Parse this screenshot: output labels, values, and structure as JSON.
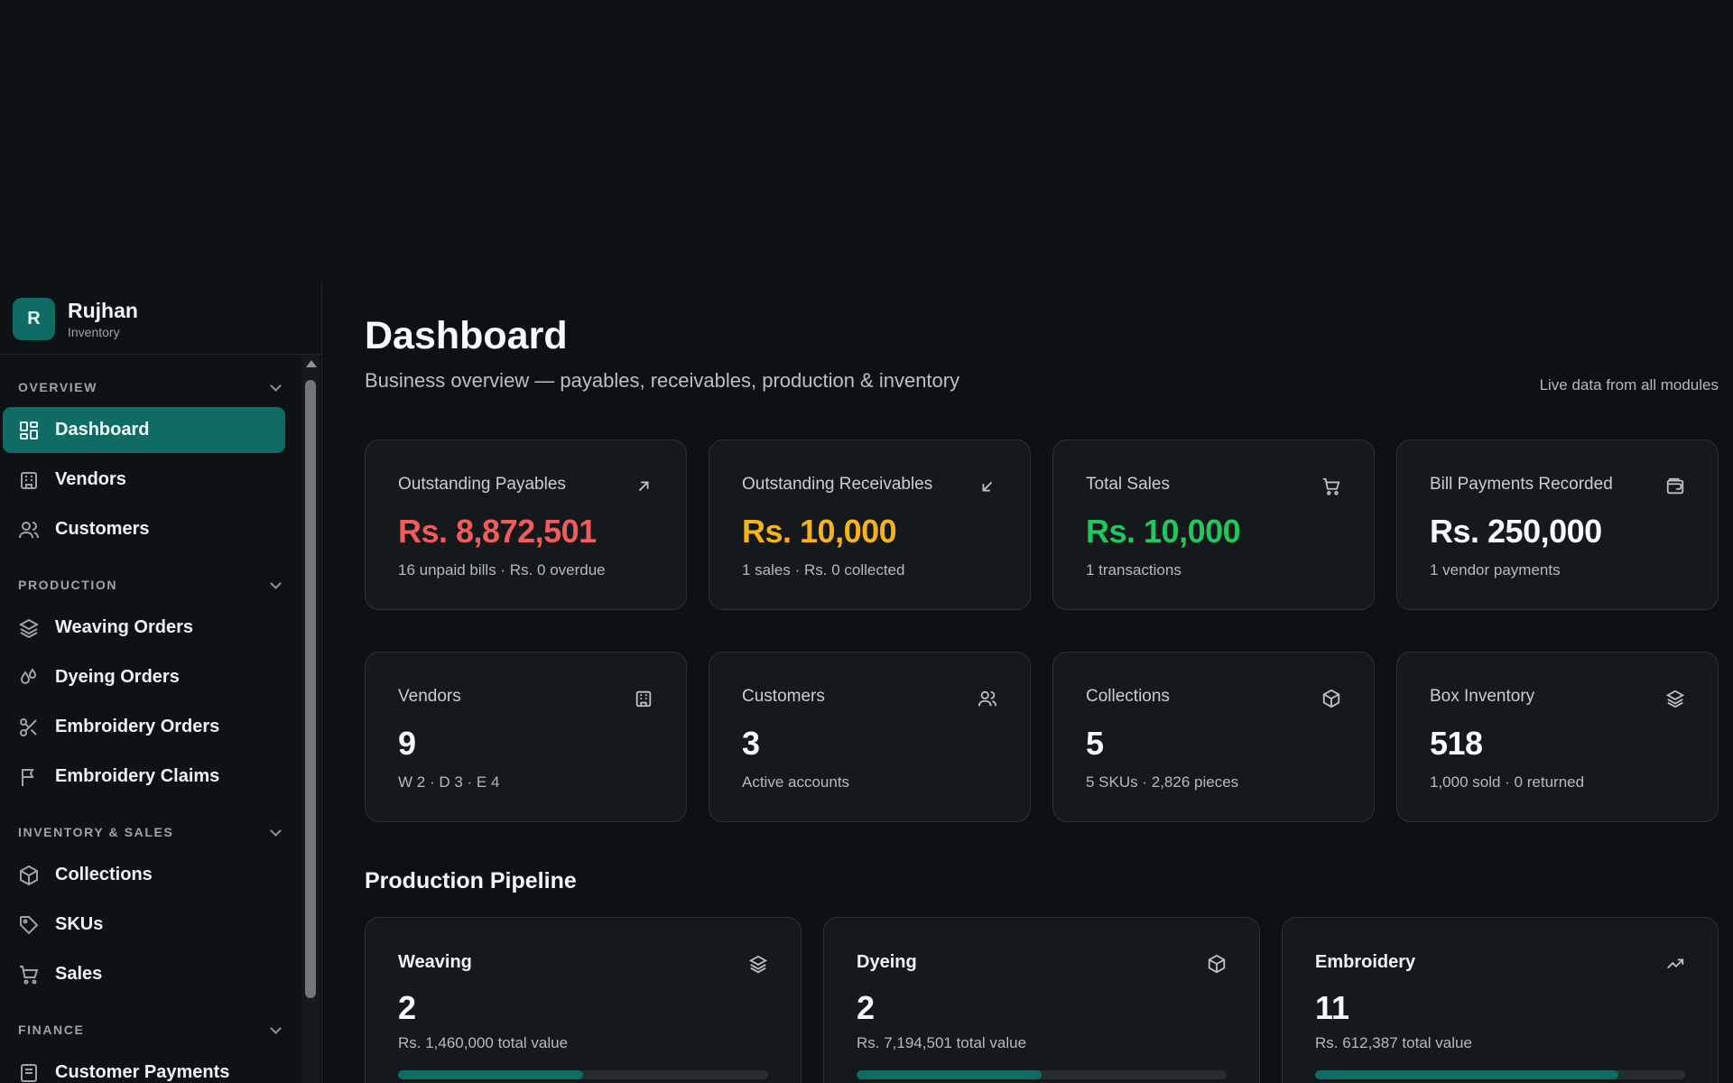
{
  "brand": {
    "logo_letter": "R",
    "name": "Rujhan",
    "subtitle": "Inventory"
  },
  "sidebar": {
    "sections": [
      {
        "title": "OVERVIEW",
        "items": [
          {
            "label": "Dashboard",
            "icon": "dashboard-grid-icon",
            "active": true
          },
          {
            "label": "Vendors",
            "icon": "building-icon"
          },
          {
            "label": "Customers",
            "icon": "users-icon"
          }
        ]
      },
      {
        "title": "PRODUCTION",
        "items": [
          {
            "label": "Weaving Orders",
            "icon": "layers-icon"
          },
          {
            "label": "Dyeing Orders",
            "icon": "droplets-icon"
          },
          {
            "label": "Embroidery Orders",
            "icon": "scissors-icon"
          },
          {
            "label": "Embroidery Claims",
            "icon": "flag-icon"
          }
        ]
      },
      {
        "title": "INVENTORY & SALES",
        "items": [
          {
            "label": "Collections",
            "icon": "package-icon"
          },
          {
            "label": "SKUs",
            "icon": "tag-icon"
          },
          {
            "label": "Sales",
            "icon": "cart-icon"
          }
        ]
      },
      {
        "title": "FINANCE",
        "items": [
          {
            "label": "Customer Payments",
            "icon": "receipt-icon"
          }
        ]
      }
    ]
  },
  "header": {
    "title": "Dashboard",
    "subtitle": "Business overview — payables, receivables, production & inventory",
    "live_note": "Live data from all modules"
  },
  "kpis_row1": [
    {
      "label": "Outstanding Payables",
      "value": "Rs. 8,872,501",
      "note": "16 unpaid bills · Rs. 0 overdue",
      "icon": "arrow-up-right-icon",
      "color": "#f25b5b"
    },
    {
      "label": "Outstanding Receivables",
      "value": "Rs. 10,000",
      "note": "1 sales · Rs. 0 collected",
      "icon": "arrow-down-left-icon",
      "color": "#f4b21b"
    },
    {
      "label": "Total Sales",
      "value": "Rs. 10,000",
      "note": "1 transactions",
      "icon": "cart-icon",
      "color": "#22c55e"
    },
    {
      "label": "Bill Payments Recorded",
      "value": "Rs. 250,000",
      "note": "1 vendor payments",
      "icon": "wallet-icon",
      "color": "#f7f9fa"
    }
  ],
  "kpis_row2": [
    {
      "label": "Vendors",
      "value": "9",
      "note": "W 2 · D 3 · E 4",
      "icon": "building-icon"
    },
    {
      "label": "Customers",
      "value": "3",
      "note": "Active accounts",
      "icon": "users-icon"
    },
    {
      "label": "Collections",
      "value": "5",
      "note": "5 SKUs · 2,826 pieces",
      "icon": "package-icon"
    },
    {
      "label": "Box Inventory",
      "value": "518",
      "note": "1,000 sold · 0 returned",
      "icon": "layers-icon"
    }
  ],
  "pipeline": {
    "title": "Production Pipeline",
    "stages": [
      {
        "label": "Weaving",
        "value": "2",
        "note": "Rs. 1,460,000 total value",
        "progress": 0.5,
        "icon": "layers-icon"
      },
      {
        "label": "Dyeing",
        "value": "2",
        "note": "Rs. 7,194,501 total value",
        "progress": 0.5,
        "icon": "package-icon"
      },
      {
        "label": "Embroidery",
        "value": "11",
        "note": "Rs. 612,387 total value",
        "progress": 0.82,
        "icon": "trending-up-icon"
      }
    ]
  },
  "colors": {
    "accent": "#0f6b63",
    "background": "#0e1113",
    "card": "#15191b"
  }
}
